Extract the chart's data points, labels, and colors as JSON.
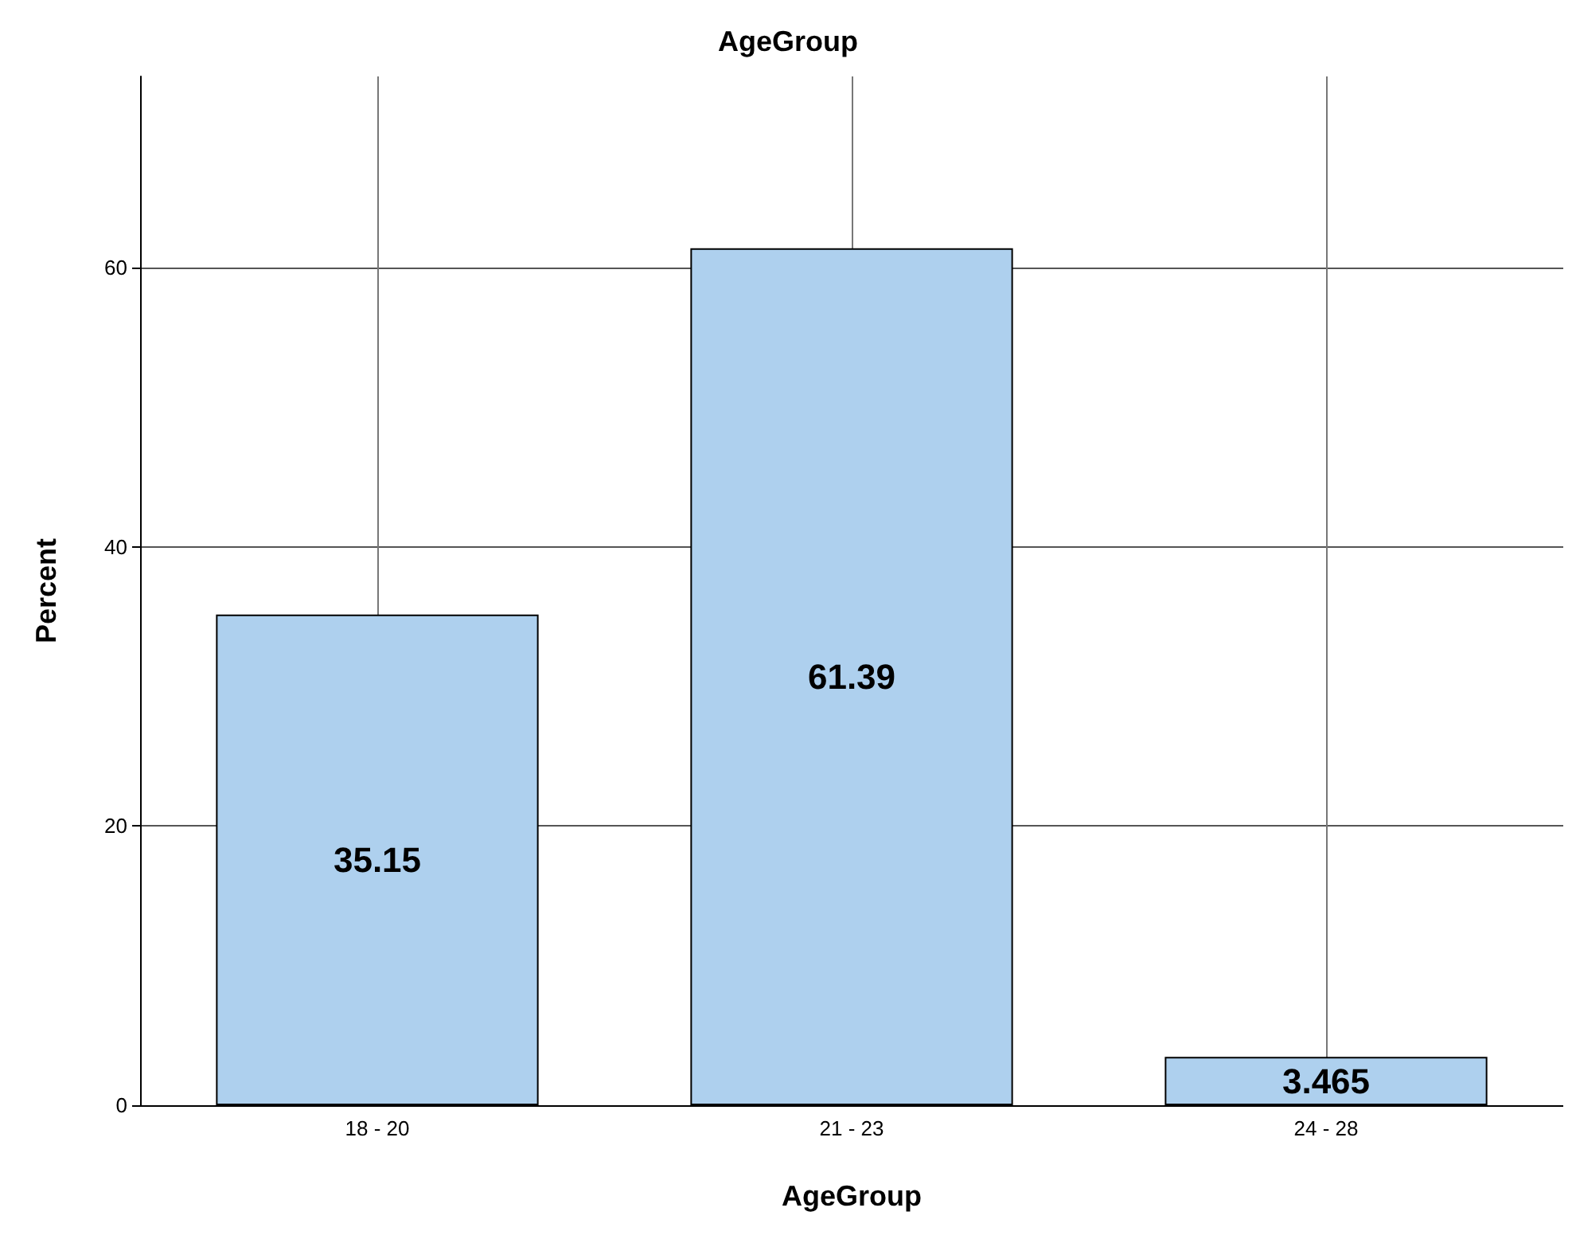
{
  "chart_data": {
    "type": "bar",
    "title": "AgeGroup",
    "xlabel": "AgeGroup",
    "ylabel": "Percent",
    "categories": [
      "18 - 20",
      "21 - 23",
      "24 - 28"
    ],
    "values": [
      35.15,
      61.39,
      3.465
    ],
    "color": "#aed0ee",
    "ylim": [
      0,
      73.7
    ],
    "yticks": [
      0,
      20,
      40,
      60
    ],
    "grid": true,
    "data_labels": true
  }
}
